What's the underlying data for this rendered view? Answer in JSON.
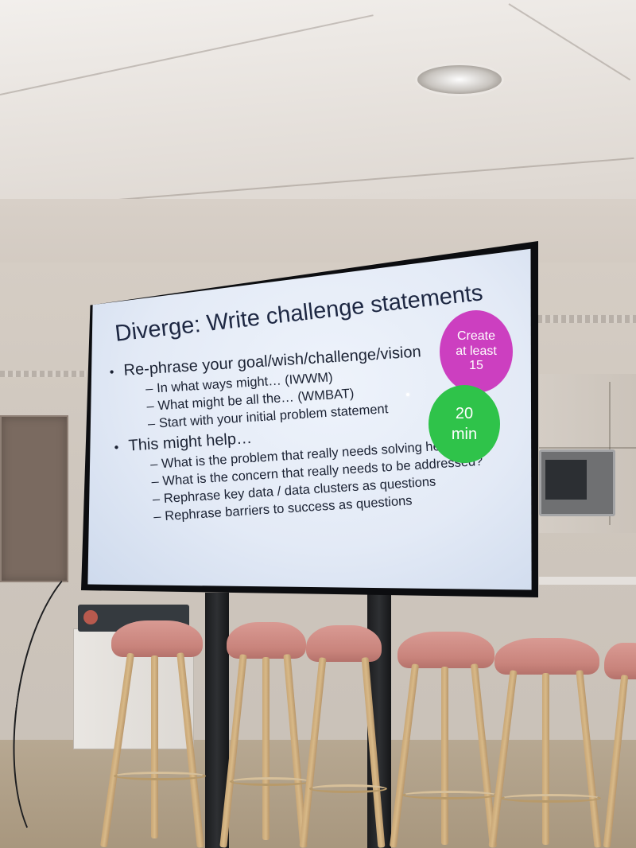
{
  "slide": {
    "title": "Diverge: Write challenge statements",
    "bullets": [
      {
        "text": "Re-phrase your goal/wish/challenge/vision",
        "subitems": [
          "In what ways might… (IWWM)",
          "What might be all the… (WMBAT)",
          "Start with your initial problem statement"
        ]
      },
      {
        "text": "This might help…",
        "subitems": [
          "What is the problem that really needs solving here?",
          "What is the concern that really needs to be addressed?",
          "Rephrase key data / data clusters as questions",
          "Rephrase barriers to success as questions"
        ]
      }
    ],
    "badges": {
      "create": "Create\nat least\n15",
      "time": "20\nmin"
    }
  },
  "colors": {
    "badge_pink": "#cc3fc0",
    "badge_green": "#2fc34a",
    "slide_background": "#e3eaf6",
    "slide_text": "#1d2742",
    "stool_seat": "#c9847c"
  }
}
